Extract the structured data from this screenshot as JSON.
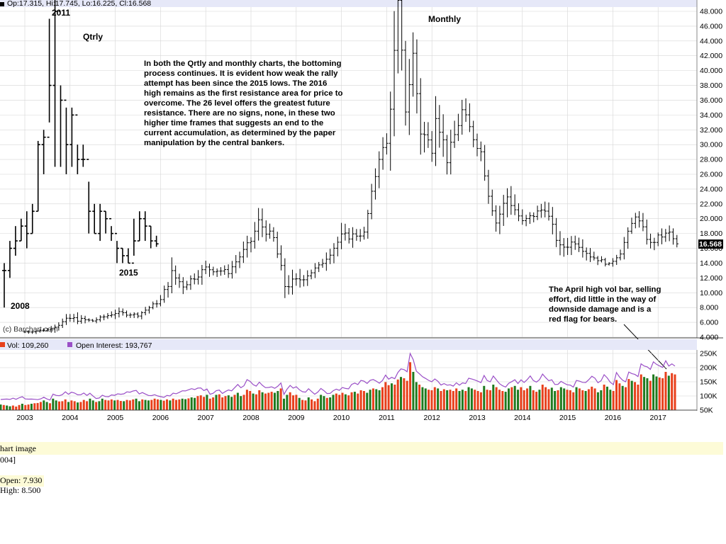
{
  "header": {
    "ohlc_text": "Op:17.315, Hi:17.745, Lo:16.225, Cl:16.568",
    "last_price": "16.568"
  },
  "annotations": {
    "label_2011": "2011",
    "label_qtrly": "Qtrly",
    "label_monthly": "Monthly",
    "label_2015": "2015",
    "label_2008": "2008",
    "copyright": "(c) Barchart.com",
    "commentary": [
      "In both the Qrtly and monthly charts, the bottoming",
      "process continues.  It is evident how weak the rally",
      "attempt has been since the 2015 lows.  The 2016",
      "high remains as the first resistance area for price to",
      "overcome.  The 26 level offers the greatest future",
      "resistance.  There are no signs, none, in these two",
      "higher time frames that suggests an end to the",
      "current accumulation, as determined by the paper",
      "manipulation by the central bankers."
    ],
    "vol_note": [
      "The April high vol bar, selling",
      "effort, did little in the way of",
      "downside damage and is a",
      "red flag for bears."
    ]
  },
  "volume_panel": {
    "vol_label": "Vol: 109,260",
    "oi_label": "Open Interest: 193,767"
  },
  "footer": {
    "line1": "hart image",
    "line2": "004]",
    "line3": "Open: 7.930",
    "line4": "High: 8.500"
  },
  "colors": {
    "bar": "#000000",
    "vol_up": "#1f7a1f",
    "vol_down": "#e8401c",
    "open_interest": "#9a4fc7",
    "panel_band": "#e6e8f8",
    "grid": "#d6d6d6",
    "footer_band": "#fdfbd7"
  },
  "chart_data": [
    {
      "type": "ohlc",
      "name": "Monthly",
      "x": [
        "2003-01",
        "2003-07",
        "2004-01",
        "2004-07",
        "2005-01",
        "2005-07",
        "2006-01",
        "2006-04",
        "2006-07",
        "2007-01",
        "2007-07",
        "2008-01",
        "2008-03",
        "2008-07",
        "2008-10",
        "2009-01",
        "2009-07",
        "2010-01",
        "2010-07",
        "2010-11",
        "2011-01",
        "2011-04",
        "2011-06",
        "2011-08",
        "2011-10",
        "2012-01",
        "2012-02",
        "2012-05",
        "2012-09",
        "2012-12",
        "2013-02",
        "2013-04",
        "2013-06",
        "2013-09",
        "2014-01",
        "2014-07",
        "2014-11",
        "2015-03",
        "2015-07",
        "2015-12",
        "2016-03",
        "2016-07",
        "2016-11",
        "2017-01",
        "2017-04",
        "2017-06"
      ],
      "close": [
        4.7,
        5.0,
        6.5,
        6.2,
        7.3,
        7.0,
        9.0,
        12.5,
        11.0,
        13.3,
        12.8,
        17.0,
        19.5,
        17.3,
        11.0,
        11.5,
        13.5,
        17.5,
        18.0,
        28.5,
        30.0,
        47.5,
        35.0,
        42.0,
        32.0,
        29.5,
        35.0,
        28.0,
        34.5,
        31.0,
        29.0,
        23.5,
        19.5,
        23.0,
        19.5,
        21.5,
        16.0,
        17.0,
        15.0,
        13.8,
        15.5,
        20.5,
        16.5,
        17.5,
        18.0,
        16.5
      ],
      "high": [
        4.8,
        5.2,
        8.2,
        6.5,
        8.2,
        7.4,
        10.0,
        15.0,
        12.0,
        14.5,
        13.5,
        19.0,
        21.2,
        18.5,
        13.0,
        14.0,
        14.5,
        19.5,
        19.0,
        31.0,
        31.5,
        48.5,
        40.0,
        44.0,
        35.0,
        31.0,
        37.0,
        30.0,
        35.0,
        33.0,
        30.5,
        26.0,
        21.0,
        25.0,
        21.0,
        22.0,
        18.5,
        18.5,
        16.0,
        14.5,
        16.5,
        21.2,
        18.5,
        18.5,
        18.8,
        17.5
      ],
      "low": [
        4.4,
        4.5,
        6.0,
        5.7,
        6.8,
        6.5,
        8.5,
        10.5,
        9.5,
        12.0,
        11.8,
        16.0,
        17.0,
        16.0,
        8.5,
        10.5,
        12.5,
        16.0,
        17.0,
        27.0,
        26.5,
        32.0,
        33.0,
        35.0,
        26.0,
        27.0,
        28.0,
        26.0,
        30.0,
        29.0,
        27.5,
        22.0,
        18.0,
        20.0,
        18.5,
        19.0,
        15.0,
        15.5,
        14.0,
        13.5,
        14.5,
        19.0,
        15.5,
        16.5,
        16.0,
        16.2
      ],
      "ylim": [
        4,
        48
      ],
      "last": 16.568
    },
    {
      "type": "ohlc",
      "name": "Qtrly",
      "x": [
        "2008",
        "2008Q2",
        "2009",
        "2009Q2",
        "2010",
        "2010Q2",
        "2010Q3",
        "2010Q4",
        "2011",
        "2011Q2",
        "2011Q3",
        "2011Q4",
        "2012",
        "2012Q2",
        "2012Q3",
        "2013",
        "2013Q2",
        "2013Q3",
        "2014",
        "2014Q2",
        "2015",
        "2015Q2",
        "2015Q3",
        "2015Q4",
        "2016",
        "2016Q2",
        "2016Q3",
        "2017"
      ],
      "close": [
        13,
        16,
        17,
        19,
        18,
        21,
        30,
        31,
        38,
        48,
        36,
        30,
        34,
        28,
        28,
        21,
        18,
        21,
        20,
        18,
        16,
        15,
        14,
        17,
        20,
        19,
        17,
        16.6
      ],
      "high": [
        14,
        17,
        19,
        20,
        21,
        22,
        30.5,
        32,
        47,
        52,
        38,
        35,
        35,
        30,
        30,
        25,
        22,
        22,
        21,
        19,
        17,
        16,
        16,
        20,
        21,
        21,
        19,
        17.7
      ],
      "low": [
        8,
        12,
        15,
        17,
        16,
        18,
        21,
        26,
        33,
        27,
        27,
        26,
        27,
        26,
        27,
        18,
        18,
        17,
        18,
        17,
        14,
        14,
        14,
        15,
        17,
        17,
        16,
        16.2
      ],
      "ylim": [
        4,
        48
      ]
    },
    {
      "type": "bar",
      "name": "Vol",
      "x_ticks": [
        "2003",
        "2004",
        "2005",
        "2006",
        "2007",
        "2008",
        "2009",
        "2010",
        "2011",
        "2012",
        "2013",
        "2014",
        "2015",
        "2016",
        "2017"
      ],
      "y_ticks": [
        "50K",
        "100K",
        "150K",
        "200K",
        "250K"
      ],
      "ylim": [
        50000,
        250000
      ],
      "values": [
        72000,
        70000,
        68000,
        65000,
        68000,
        64000,
        70000,
        75000,
        70000,
        72000,
        75000,
        77000,
        78000,
        82000,
        88000,
        82000,
        77000,
        95000,
        88000,
        84000,
        85000,
        92000,
        82000,
        88000,
        85000,
        80000,
        82000,
        90000,
        85000,
        95000,
        88000,
        82000,
        85000,
        95000,
        90000,
        88000,
        92000,
        88000,
        90000,
        86000,
        85000,
        90000,
        88000,
        92000,
        95000,
        85000,
        92000,
        90000,
        88000,
        90000,
        95000,
        92000,
        90000,
        87000,
        92000,
        88000,
        95000,
        90000,
        92000,
        95000,
        93000,
        96000,
        100000,
        98000,
        105000,
        108000,
        102000,
        110000,
        95000,
        100000,
        110000,
        112000,
        100000,
        105000,
        108000,
        102000,
        110000,
        118000,
        105000,
        110000,
        130000,
        125000,
        115000,
        112000,
        128000,
        120000,
        115000,
        118000,
        122000,
        118000,
        125000,
        135000,
        95000,
        110000,
        120000,
        108000,
        110000,
        98000,
        90000,
        88000,
        100000,
        92000,
        85000,
        95000,
        110000,
        105000,
        98000,
        100000,
        110000,
        115000,
        110000,
        118000,
        112000,
        108000,
        120000,
        122000,
        115000,
        128000,
        125000,
        118000,
        130000,
        135000,
        132000,
        128000,
        140000,
        160000,
        148000,
        155000,
        150000,
        170000,
        180000,
        175000,
        165000,
        238000,
        200000,
        160000,
        150000,
        140000,
        135000,
        130000,
        128000,
        140000,
        135000,
        125000,
        132000,
        128000,
        130000,
        125000,
        135000,
        125000,
        130000,
        125000,
        140000,
        135000,
        130000,
        125000,
        120000,
        145000,
        130000,
        128000,
        150000,
        140000,
        130000,
        125000,
        122000,
        135000,
        140000,
        145000,
        130000,
        140000,
        128000,
        135000,
        145000,
        128000,
        122000,
        130000,
        150000,
        140000,
        132000,
        138000,
        125000,
        128000,
        140000,
        135000,
        130000,
        128000,
        120000,
        140000,
        135000,
        128000,
        125000,
        132000,
        142000,
        135000,
        120000,
        128000,
        150000,
        142000,
        130000,
        125000,
        168000,
        155000,
        145000,
        140000,
        172000,
        165000,
        160000,
        150000,
        190000,
        180000,
        175000,
        165000,
        190000,
        182000,
        178000,
        175000,
        200000,
        185000,
        195000,
        190000
      ]
    },
    {
      "type": "line",
      "name": "Open Interest",
      "value_last": 193767
    }
  ]
}
